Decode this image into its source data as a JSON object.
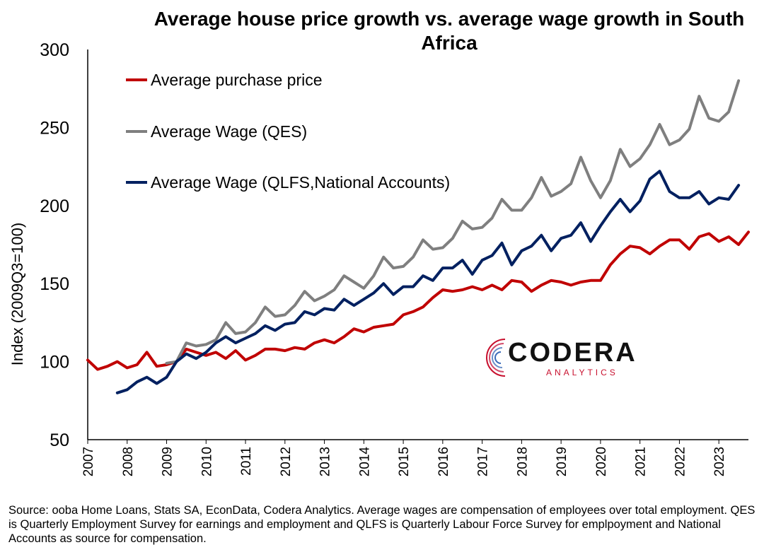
{
  "chart_data": {
    "type": "line",
    "title": "Average house price growth vs. average wage growth in South Africa",
    "ylabel": "Index (2009Q3=100)",
    "xlabel": "",
    "ylim": [
      50,
      300
    ],
    "yticks": [
      50,
      100,
      150,
      200,
      250,
      300
    ],
    "xlim": [
      2007.0,
      2023.75
    ],
    "xticks": [
      "2007",
      "2008",
      "2009",
      "2010",
      "2011",
      "2012",
      "2013",
      "2014",
      "2015",
      "2016",
      "2017",
      "2018",
      "2019",
      "2020",
      "2021",
      "2022",
      "2023"
    ],
    "grid": false,
    "legend_position": "top-left",
    "series": [
      {
        "name": "Average purchase price",
        "color": "#c00000",
        "x_start": 2007.0,
        "x_step": 0.25,
        "values": [
          101,
          95,
          97,
          100,
          96,
          98,
          106,
          97,
          98,
          100,
          108,
          106,
          104,
          106,
          102,
          107,
          101,
          104,
          108,
          108,
          107,
          109,
          108,
          112,
          114,
          112,
          116,
          121,
          119,
          122,
          123,
          124,
          130,
          132,
          135,
          141,
          146,
          145,
          146,
          148,
          146,
          149,
          146,
          152,
          151,
          145,
          149,
          152,
          151,
          149,
          151,
          152,
          152,
          162,
          169,
          174,
          173,
          169,
          174,
          178,
          178,
          172,
          180,
          182,
          177,
          180,
          175,
          183
        ]
      },
      {
        "name": "Average Wage (QES)",
        "color": "#7f7f7f",
        "x_start": 2009.0,
        "x_step": 0.25,
        "values": [
          99,
          100,
          112,
          110,
          111,
          114,
          125,
          118,
          119,
          125,
          135,
          129,
          130,
          136,
          145,
          139,
          142,
          146,
          155,
          151,
          147,
          155,
          167,
          160,
          161,
          167,
          178,
          172,
          173,
          179,
          190,
          185,
          186,
          192,
          204,
          197,
          197,
          205,
          218,
          206,
          209,
          214,
          231,
          216,
          205,
          216,
          236,
          225,
          230,
          239,
          252,
          239,
          242,
          249,
          270,
          256,
          254,
          260,
          280
        ]
      },
      {
        "name": "Average Wage (QLFS,National Accounts)",
        "color": "#002060",
        "x_start": 2007.75,
        "x_step": 0.25,
        "values": [
          80,
          82,
          87,
          90,
          86,
          90,
          100,
          105,
          102,
          106,
          112,
          116,
          112,
          115,
          118,
          123,
          120,
          124,
          125,
          132,
          130,
          134,
          133,
          140,
          136,
          140,
          144,
          150,
          143,
          148,
          148,
          155,
          152,
          160,
          160,
          165,
          156,
          165,
          168,
          176,
          162,
          171,
          174,
          181,
          171,
          179,
          181,
          189,
          177,
          187,
          196,
          204,
          196,
          203,
          217,
          222,
          209,
          205,
          205,
          209,
          201,
          205,
          204,
          213
        ]
      }
    ]
  },
  "logo": {
    "word": "CODERA",
    "sub": "ANALYTICS"
  },
  "source": "Source: ooba Home Loans, Stats SA, EconData, Codera Analytics. Average wages are compensation of employees over total employment. QES is Quarterly Employment Survey for earnings and employment and QLFS is Quarterly Labour Force Survey for emplpoyment and National Accounts as source for compensation."
}
